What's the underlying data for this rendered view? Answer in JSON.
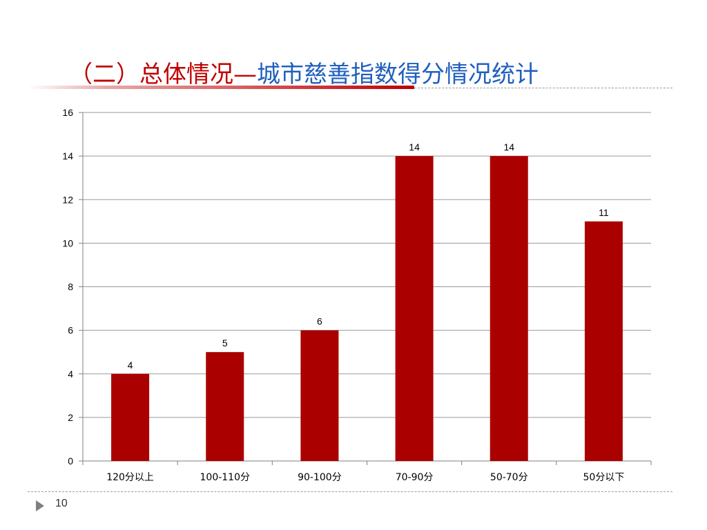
{
  "title": {
    "part_red": "（二）总体情况—",
    "part_blue": "城市慈善指数得分情况统计"
  },
  "colors": {
    "title_red": "#c00000",
    "title_blue": "#1f5fbf",
    "bar": "#aa0000",
    "gridline": "#999999"
  },
  "chart_data": {
    "type": "bar",
    "title": "",
    "xlabel": "",
    "ylabel": "",
    "categories": [
      "120分以上",
      "100-110分",
      "90-100分",
      "70-90分",
      "50-70分",
      "50分以下"
    ],
    "values": [
      4,
      5,
      6,
      14,
      14,
      11
    ],
    "data_labels": [
      "4",
      "5",
      "6",
      "14",
      "14",
      "11"
    ],
    "ylim": [
      0,
      16
    ],
    "yticks": [
      "0",
      "2",
      "4",
      "6",
      "8",
      "10",
      "12",
      "14",
      "16"
    ],
    "grid": true,
    "legend": "none"
  },
  "footer": {
    "page_number": "10",
    "arrow_icon": "triangle-right-icon"
  }
}
